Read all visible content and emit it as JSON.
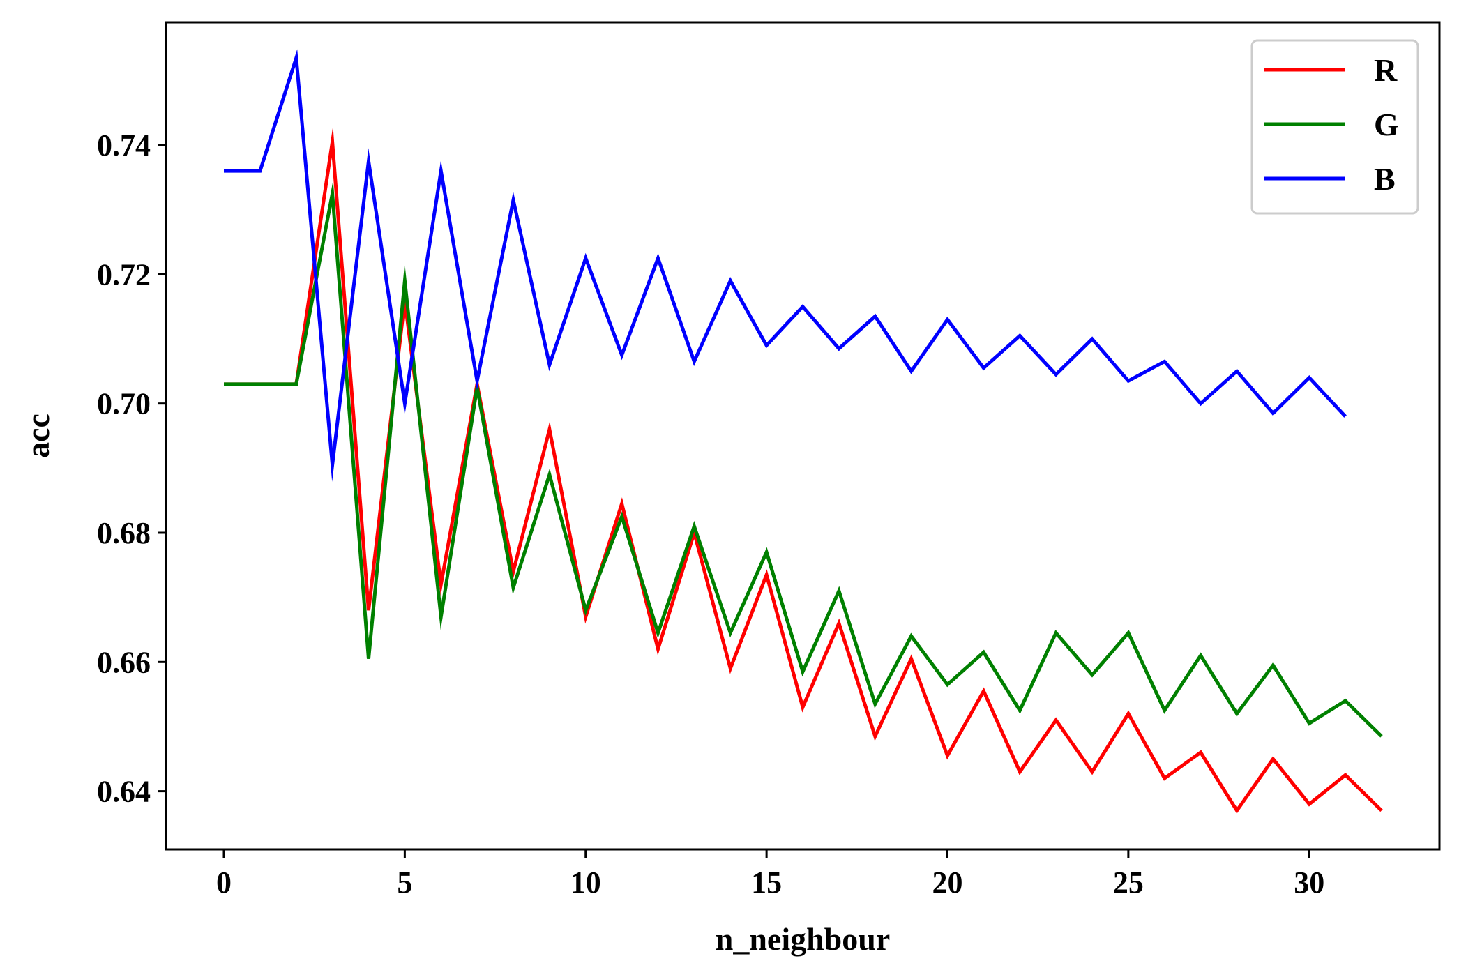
{
  "chart_data": {
    "type": "line",
    "xlabel": "n_neighbour",
    "ylabel": "acc",
    "xlim": [
      -1.6,
      33.6
    ],
    "ylim": [
      0.631,
      0.759
    ],
    "xticks": [
      0,
      5,
      10,
      15,
      20,
      25,
      30
    ],
    "yticks": [
      0.64,
      0.66,
      0.68,
      0.7,
      0.72,
      0.74
    ],
    "ytick_labels": [
      "0.64",
      "0.66",
      "0.68",
      "0.70",
      "0.72",
      "0.74"
    ],
    "grid": false,
    "legend_position": "top-right",
    "series": [
      {
        "name": "R",
        "color": "#ff0000",
        "x": [
          0,
          1,
          2,
          3,
          4,
          5,
          6,
          7,
          8,
          9,
          10,
          11,
          12,
          13,
          14,
          15,
          16,
          17,
          18,
          19,
          20,
          21,
          22,
          23,
          24,
          25,
          26,
          27,
          28,
          29,
          30,
          31,
          32
        ],
        "values": [
          0.703,
          0.703,
          0.703,
          0.7405,
          0.668,
          0.716,
          0.672,
          0.703,
          0.674,
          0.696,
          0.667,
          0.6845,
          0.662,
          0.68,
          0.659,
          0.6735,
          0.653,
          0.666,
          0.6485,
          0.6605,
          0.6455,
          0.6555,
          0.643,
          0.651,
          0.643,
          0.652,
          0.642,
          0.646,
          0.637,
          0.645,
          0.638,
          0.6425,
          0.637
        ]
      },
      {
        "name": "G",
        "color": "#008000",
        "x": [
          0,
          1,
          2,
          3,
          4,
          5,
          6,
          7,
          8,
          9,
          10,
          11,
          12,
          13,
          14,
          15,
          16,
          17,
          18,
          19,
          20,
          21,
          22,
          23,
          24,
          25,
          26,
          27,
          28,
          29,
          30,
          31,
          32
        ],
        "values": [
          0.703,
          0.703,
          0.703,
          0.7325,
          0.6605,
          0.719,
          0.667,
          0.7025,
          0.6715,
          0.689,
          0.668,
          0.6825,
          0.6645,
          0.681,
          0.6645,
          0.677,
          0.6585,
          0.671,
          0.6535,
          0.664,
          0.6565,
          0.6615,
          0.6525,
          0.6645,
          0.658,
          0.6645,
          0.6525,
          0.661,
          0.652,
          0.6595,
          0.6505,
          0.654,
          0.6485
        ]
      },
      {
        "name": "B",
        "color": "#0000ff",
        "x": [
          0,
          1,
          2,
          3,
          4,
          5,
          6,
          7,
          8,
          9,
          10,
          11,
          12,
          13,
          14,
          15,
          16,
          17,
          18,
          19,
          20,
          21,
          22,
          23,
          24,
          25,
          26,
          27,
          28,
          29,
          30,
          31
        ],
        "values": [
          0.736,
          0.736,
          0.7535,
          0.6905,
          0.7375,
          0.7,
          0.736,
          0.7035,
          0.7315,
          0.706,
          0.7225,
          0.7075,
          0.7225,
          0.7065,
          0.719,
          0.709,
          0.715,
          0.7085,
          0.7135,
          0.705,
          0.713,
          0.7055,
          0.7105,
          0.7045,
          0.71,
          0.7035,
          0.7065,
          0.7,
          0.705,
          0.6985,
          0.704,
          0.698
        ]
      }
    ]
  }
}
